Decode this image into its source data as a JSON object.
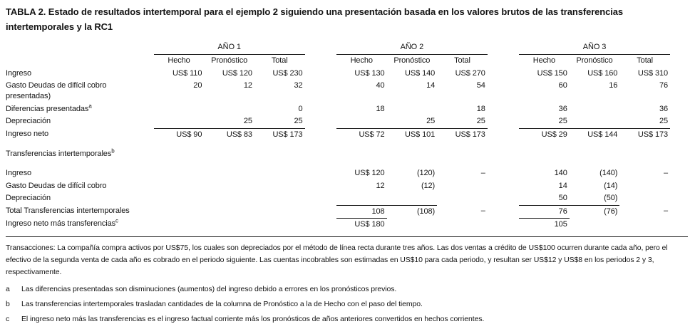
{
  "title": "TABLA 2. Estado de resultados intertemporal para el ejemplo 2 siguiendo una presentación basada en los valores brutos de las transferencias intertemporales y la RC1",
  "table": {
    "year_groups": [
      "AÑO 1",
      "AÑO 2",
      "AÑO 3"
    ],
    "sub_columns": [
      "Hecho",
      "Pronóstico",
      "Total"
    ],
    "sections": [
      {
        "rows": [
          {
            "label": "Ingreso",
            "values": [
              "US$ 110",
              "US$ 120",
              "US$ 230",
              "US$ 130",
              "US$ 140",
              "US$ 270",
              "US$ 150",
              "US$ 160",
              "US$ 310"
            ]
          },
          {
            "label": "Gasto Deudas de difícil cobro presentadas)",
            "values": [
              "20",
              "12",
              "32",
              "40",
              "14",
              "54",
              "60",
              "16",
              "76"
            ]
          },
          {
            "label": "Diferencias presentadas",
            "sup": "a",
            "values": [
              "",
              "",
              "0",
              "18",
              "",
              "18",
              "36",
              "",
              "36"
            ]
          },
          {
            "label": "Depreciación",
            "values": [
              "",
              "25",
              "25",
              "",
              "25",
              "25",
              "25",
              "",
              "25"
            ]
          },
          {
            "label": "Ingreso neto",
            "overline": true,
            "values": [
              "US$ 90",
              "US$ 83",
              "US$ 173",
              "US$ 72",
              "US$ 101",
              "US$ 173",
              "US$ 29",
              "US$ 144",
              "US$ 173"
            ]
          }
        ]
      },
      {
        "header": {
          "label": "Transferencias intertemporales",
          "sup": "b"
        },
        "rows": [
          {
            "label": "Ingreso",
            "values": [
              "",
              "",
              "",
              "US$ 120",
              "(120)",
              "–",
              "140",
              "(140)",
              "–"
            ]
          },
          {
            "label": "Gasto Deudas de difícil cobro",
            "values": [
              "",
              "",
              "",
              "12",
              "(12)",
              "",
              "14",
              "(14)",
              ""
            ]
          },
          {
            "label": "Depreciación",
            "values": [
              "",
              "",
              "",
              "",
              "",
              "",
              "50",
              "(50)",
              ""
            ]
          },
          {
            "label": "Total Transferencias intertemporales",
            "overline": true,
            "values": [
              "",
              "",
              "",
              "108",
              "(108)",
              "–",
              "76",
              "(76)",
              "–"
            ]
          },
          {
            "label": "Ingreso neto más transferencias",
            "sup": "c",
            "overline": true,
            "values": [
              "",
              "",
              "",
              "US$ 180",
              "",
              "",
              "105",
              "",
              ""
            ]
          }
        ]
      }
    ]
  },
  "notes": {
    "transactions": "Transacciones: La compañía compra activos por US$75, los cuales son depreciados por el método de línea recta durante tres años. Las dos ventas a crédito de US$100 ocurren durante cada año, pero el efectivo de la segunda venta de cada año es cobrado en el periodo siguiente. Las cuentas incobrables son estimadas en US$10 para cada periodo, y resultan ser US$12 y US$8 en los periodos 2 y 3, respectivamente.",
    "footnotes": [
      {
        "marker": "a",
        "text": "Las diferencias presentadas son disminuciones (aumentos) del ingreso debido a errores en los pronósticos previos."
      },
      {
        "marker": "b",
        "text": "Las transferencias intertemporales trasladan cantidades de la columna de Pronóstico a la de Hecho con el paso del tiempo."
      },
      {
        "marker": "c",
        "text": "El ingreso neto más las transferencias es el ingreso factual corriente más los pronósticos de años anteriores convertidos en hechos corrientes."
      }
    ]
  }
}
